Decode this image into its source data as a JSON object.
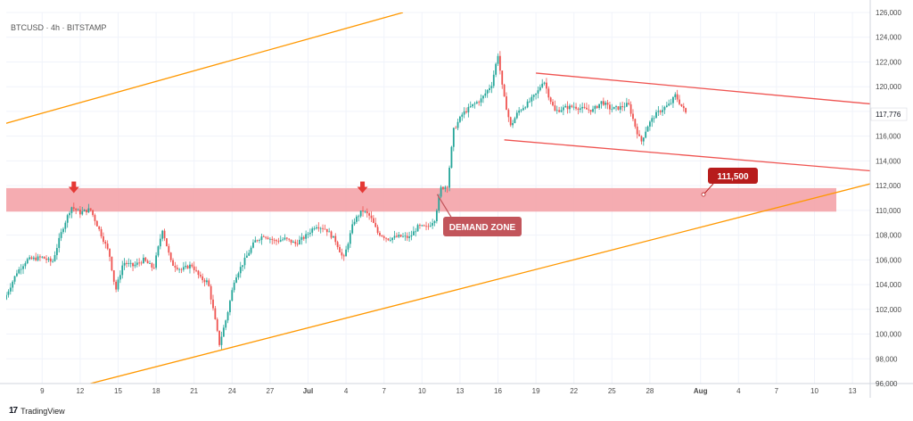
{
  "chart_data": {
    "type": "candlestick",
    "title": "BTCUSD · 4h · BITSTAMP",
    "ylim": [
      96000,
      126000
    ],
    "y_ticks": [
      "126,000",
      "124,000",
      "122,000",
      "120,000",
      "118,000",
      "116,000",
      "114,000",
      "112,000",
      "110,000",
      "108,000",
      "106,000",
      "104,000",
      "102,000",
      "100,000",
      "98,000",
      "96,000"
    ],
    "y_tick_values": [
      126000,
      124000,
      122000,
      120000,
      118000,
      116000,
      114000,
      112000,
      110000,
      108000,
      106000,
      104000,
      102000,
      100000,
      98000,
      96000
    ],
    "x_ticks": [
      "9",
      "12",
      "15",
      "18",
      "21",
      "24",
      "27",
      "Jul",
      "4",
      "7",
      "10",
      "13",
      "16",
      "19",
      "22",
      "25",
      "28",
      "Aug",
      "4",
      "7",
      "10",
      "13"
    ],
    "x_tick_days": [
      0,
      3,
      6,
      9,
      12,
      15,
      18,
      21,
      24,
      27,
      30,
      33,
      36,
      39,
      42,
      45,
      48,
      52,
      55,
      58,
      61,
      64
    ],
    "bold_x_ticks": [
      "Jul",
      "Aug"
    ],
    "last_price": "117,776",
    "last_price_value": 117776,
    "demand_zone": {
      "label": "DEMAND ZONE",
      "from": 109900,
      "to": 111800,
      "color": "#f4a3a8"
    },
    "level_label": {
      "text": "111,500",
      "value": 111500,
      "day": 70
    },
    "arrows": [
      {
        "day": 2.5,
        "price": 110600
      },
      {
        "day": 25.3,
        "price": 110600
      }
    ],
    "channel_lines": [
      {
        "name": "upper ascending",
        "color": "#ff9800",
        "from": [
          -3,
          117000
        ],
        "to": [
          28.5,
          126000
        ]
      },
      {
        "name": "lower ascending",
        "color": "#ff9800",
        "from": [
          0,
          95000
        ],
        "to": [
          82,
          116500
        ]
      },
      {
        "name": "falling top",
        "color": "#ef5350",
        "from": [
          39,
          121100
        ],
        "to": [
          74,
          117800
        ]
      },
      {
        "name": "falling bottom",
        "color": "#ef5350",
        "from": [
          36.5,
          115700
        ],
        "to": [
          73.5,
          112500
        ]
      }
    ],
    "price_path": [
      [
        -3,
        102800
      ],
      [
        -2,
        105000
      ],
      [
        -1.2,
        106000
      ],
      [
        0,
        106200
      ],
      [
        0.8,
        105800
      ],
      [
        1.6,
        108500
      ],
      [
        2.3,
        110300
      ],
      [
        3,
        109800
      ],
      [
        3.8,
        110100
      ],
      [
        4.6,
        108200
      ],
      [
        5.3,
        106500
      ],
      [
        5.8,
        103500
      ],
      [
        6.4,
        105800
      ],
      [
        7.2,
        105500
      ],
      [
        8,
        106000
      ],
      [
        8.8,
        105300
      ],
      [
        9.5,
        108500
      ],
      [
        10.2,
        105700
      ],
      [
        11,
        105200
      ],
      [
        11.8,
        105600
      ],
      [
        12.5,
        104500
      ],
      [
        13.1,
        104200
      ],
      [
        13.5,
        102000
      ],
      [
        14,
        99200
      ],
      [
        14.6,
        101500
      ],
      [
        15.2,
        104500
      ],
      [
        16,
        106000
      ],
      [
        16.8,
        107500
      ],
      [
        17.5,
        108000
      ],
      [
        18.4,
        107500
      ],
      [
        19.2,
        107700
      ],
      [
        20,
        107300
      ],
      [
        20.8,
        107900
      ],
      [
        21.6,
        108800
      ],
      [
        22.4,
        108500
      ],
      [
        23.2,
        107500
      ],
      [
        23.8,
        106000
      ],
      [
        24.6,
        109100
      ],
      [
        25.3,
        110000
      ],
      [
        25.9,
        109500
      ],
      [
        26.5,
        108200
      ],
      [
        27.3,
        107700
      ],
      [
        28.2,
        107900
      ],
      [
        29,
        107800
      ],
      [
        29.7,
        108700
      ],
      [
        30.4,
        108600
      ],
      [
        31,
        109300
      ],
      [
        31.5,
        111800
      ],
      [
        32,
        112000
      ],
      [
        32.5,
        116500
      ],
      [
        33.2,
        117800
      ],
      [
        34,
        118500
      ],
      [
        34.7,
        119000
      ],
      [
        35.5,
        120200
      ],
      [
        36,
        122600
      ],
      [
        36.4,
        119500
      ],
      [
        37,
        116800
      ],
      [
        37.6,
        118000
      ],
      [
        38.4,
        118700
      ],
      [
        39.1,
        119500
      ],
      [
        39.6,
        120600
      ],
      [
        40,
        119300
      ],
      [
        40.5,
        118000
      ],
      [
        41.3,
        118300
      ],
      [
        42,
        118400
      ],
      [
        42.7,
        118200
      ],
      [
        43.5,
        118100
      ],
      [
        44.2,
        118800
      ],
      [
        44.9,
        118200
      ],
      [
        45.6,
        118300
      ],
      [
        46.3,
        118600
      ],
      [
        46.9,
        116600
      ],
      [
        47.3,
        115500
      ],
      [
        47.8,
        116800
      ],
      [
        48.4,
        117700
      ],
      [
        49,
        118200
      ],
      [
        49.6,
        118600
      ],
      [
        50,
        119300
      ],
      [
        50.4,
        118600
      ],
      [
        50.9,
        117776
      ]
    ]
  },
  "footer": {
    "brand": "TradingView",
    "logo": "17"
  },
  "colors": {
    "candle_up": "#26a69a",
    "candle_down": "#ef5350",
    "grid": "#f0f3fa",
    "axis_text": "#4a4a4a"
  }
}
